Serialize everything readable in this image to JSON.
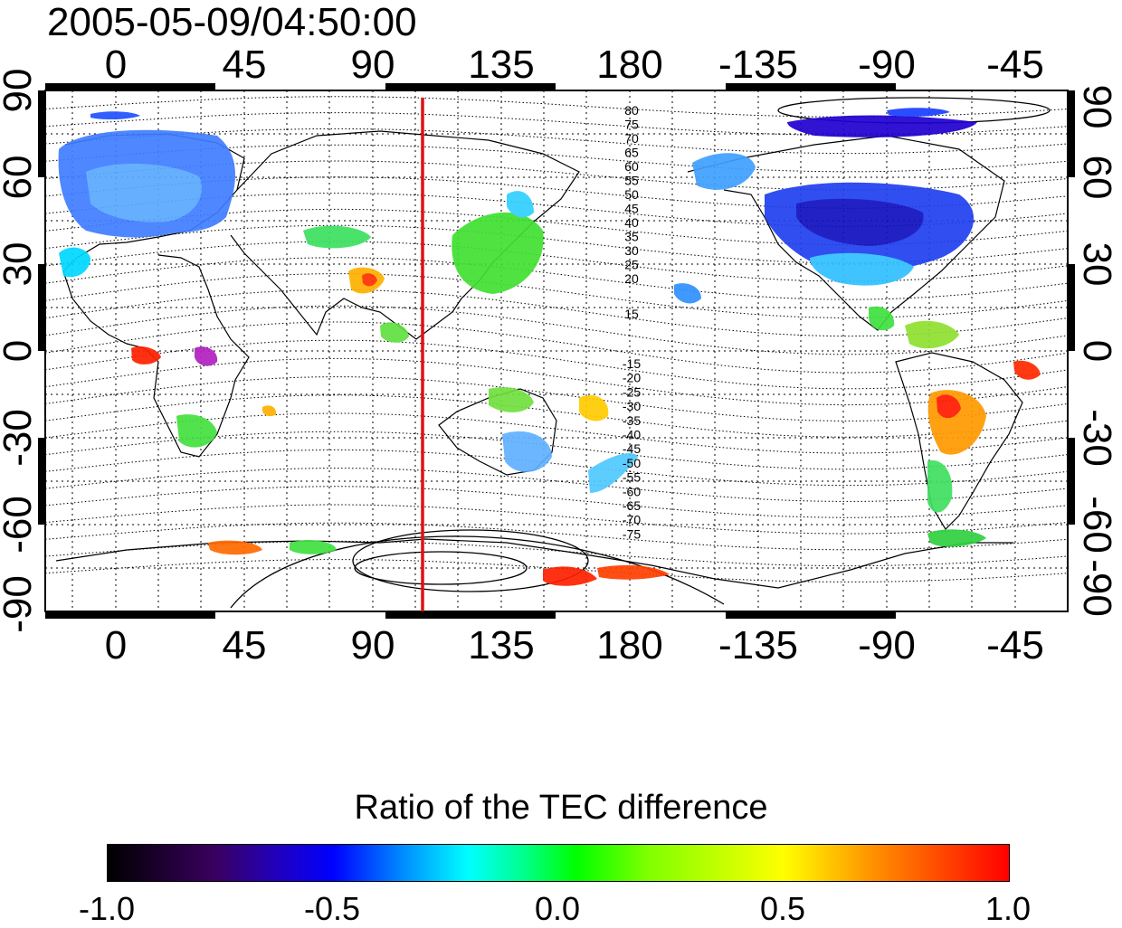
{
  "timestamp": "2005-05-09/04:50:00",
  "axes": {
    "top_longitude_labels": [
      "0",
      "45",
      "90",
      "135",
      "180",
      "-135",
      "-90",
      "-45"
    ],
    "bottom_longitude_labels": [
      "0",
      "45",
      "90",
      "135",
      "180",
      "-135",
      "-90",
      "-45"
    ],
    "left_latitude_labels": [
      "90",
      "60",
      "30",
      "0",
      "-30",
      "-60",
      "-90"
    ],
    "right_latitude_labels": [
      "90",
      "60",
      "30",
      "0",
      "-30",
      "-60",
      "-90"
    ]
  },
  "magnetic_latitude_labels_north": [
    "80",
    "75",
    "70",
    "65",
    "60",
    "55",
    "50",
    "45",
    "40",
    "35",
    "30",
    "25",
    "20",
    "15"
  ],
  "magnetic_latitude_labels_south": [
    "-15",
    "-20",
    "-25",
    "-30",
    "-35",
    "-40",
    "-45",
    "-50",
    "-55",
    "-60",
    "-65",
    "-70",
    "-75"
  ],
  "marker": {
    "longitude": 105,
    "color": "#e01010"
  },
  "colorbar": {
    "title": "Ratio of the TEC difference",
    "tick_labels": [
      "-1.0",
      "-0.5",
      "0.0",
      "0.5",
      "1.0"
    ],
    "range": [
      -1.0,
      1.0
    ]
  }
}
